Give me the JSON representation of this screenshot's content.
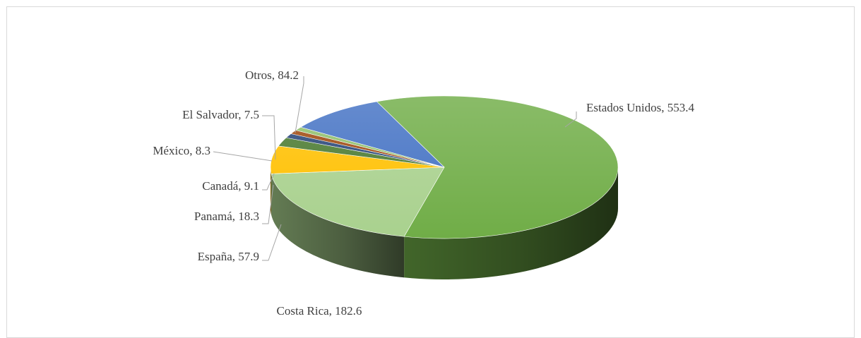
{
  "chart_data": {
    "type": "pie",
    "title": "",
    "slices": [
      {
        "name": "Estados Unidos",
        "value": 553.4,
        "label": "Estados Unidos, 553.4",
        "color": "#70ad47"
      },
      {
        "name": "Costa Rica",
        "value": 182.6,
        "label": "Costa Rica, 182.6",
        "color": "#a9d18e"
      },
      {
        "name": "España",
        "value": 57.9,
        "label": "España, 57.9",
        "color": "#ffc000"
      },
      {
        "name": "Panamá",
        "value": 18.3,
        "label": "Panamá, 18.3",
        "color": "#4a7a30"
      },
      {
        "name": "Canadá",
        "value": 9.1,
        "label": "Canadá, 9.1",
        "color": "#264478"
      },
      {
        "name": "México",
        "value": 8.3,
        "label": "México, 8.3",
        "color": "#9e480e"
      },
      {
        "name": "El Salvador",
        "value": 7.5,
        "label": "El Salvador, 7.5",
        "color": "#8fbf6a"
      },
      {
        "name": "Otros",
        "value": 84.2,
        "label": "Otros, 84.2",
        "color": "#4472c4"
      }
    ],
    "style": "3d-pie",
    "legend": "none"
  }
}
